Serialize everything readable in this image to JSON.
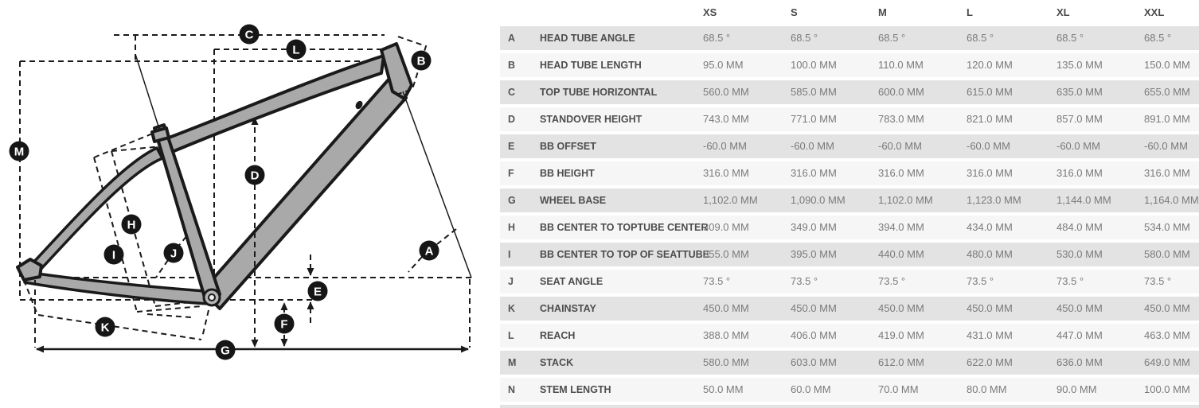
{
  "diagram": {
    "labels": [
      "A",
      "B",
      "C",
      "D",
      "E",
      "F",
      "G",
      "H",
      "I",
      "J",
      "K",
      "L",
      "M"
    ],
    "frame_color": "#a9a9a9",
    "line_color": "#1a1a1a",
    "label_bg_color": "#161616",
    "label_text_color": "#ffffff"
  },
  "table": {
    "columns": [
      "XS",
      "S",
      "M",
      "L",
      "XL",
      "XXL"
    ],
    "rows": [
      {
        "key": "A",
        "name": "HEAD TUBE ANGLE",
        "values": [
          "68.5 °",
          "68.5 °",
          "68.5 °",
          "68.5 °",
          "68.5 °",
          "68.5 °"
        ]
      },
      {
        "key": "B",
        "name": "HEAD TUBE LENGTH",
        "values": [
          "95.0 MM",
          "100.0 MM",
          "110.0 MM",
          "120.0 MM",
          "135.0 MM",
          "150.0 MM"
        ]
      },
      {
        "key": "C",
        "name": "TOP TUBE HORIZONTAL",
        "values": [
          "560.0 MM",
          "585.0 MM",
          "600.0 MM",
          "615.0 MM",
          "635.0 MM",
          "655.0 MM"
        ]
      },
      {
        "key": "D",
        "name": "STANDOVER HEIGHT",
        "values": [
          "743.0 MM",
          "771.0 MM",
          "783.0 MM",
          "821.0 MM",
          "857.0 MM",
          "891.0 MM"
        ]
      },
      {
        "key": "E",
        "name": "BB OFFSET",
        "values": [
          "-60.0 MM",
          "-60.0 MM",
          "-60.0 MM",
          "-60.0 MM",
          "-60.0 MM",
          "-60.0 MM"
        ]
      },
      {
        "key": "F",
        "name": "BB HEIGHT",
        "values": [
          "316.0 MM",
          "316.0 MM",
          "316.0 MM",
          "316.0 MM",
          "316.0 MM",
          "316.0 MM"
        ]
      },
      {
        "key": "G",
        "name": "WHEEL BASE",
        "values": [
          "1,102.0 MM",
          "1,090.0 MM",
          "1,102.0 MM",
          "1,123.0 MM",
          "1,144.0 MM",
          "1,164.0 MM"
        ]
      },
      {
        "key": "H",
        "name": "BB CENTER TO TOPTUBE CENTER",
        "values": [
          "309.0 MM",
          "349.0 MM",
          "394.0 MM",
          "434.0 MM",
          "484.0 MM",
          "534.0 MM"
        ]
      },
      {
        "key": "I",
        "name": "BB CENTER TO TOP OF SEATTUBE",
        "values": [
          "355.0 MM",
          "395.0 MM",
          "440.0 MM",
          "480.0 MM",
          "530.0 MM",
          "580.0 MM"
        ]
      },
      {
        "key": "J",
        "name": "SEAT ANGLE",
        "values": [
          "73.5 °",
          "73.5 °",
          "73.5 °",
          "73.5 °",
          "73.5 °",
          "73.5 °"
        ]
      },
      {
        "key": "K",
        "name": "CHAINSTAY",
        "values": [
          "450.0 MM",
          "450.0 MM",
          "450.0 MM",
          "450.0 MM",
          "450.0 MM",
          "450.0 MM"
        ]
      },
      {
        "key": "L",
        "name": "REACH",
        "values": [
          "388.0 MM",
          "406.0 MM",
          "419.0 MM",
          "431.0 MM",
          "447.0 MM",
          "463.0 MM"
        ]
      },
      {
        "key": "M",
        "name": "STACK",
        "values": [
          "580.0 MM",
          "603.0 MM",
          "612.0 MM",
          "622.0 MM",
          "636.0 MM",
          "649.0 MM"
        ]
      },
      {
        "key": "N",
        "name": "STEM LENGTH",
        "values": [
          "50.0 MM",
          "60.0 MM",
          "70.0 MM",
          "80.0 MM",
          "90.0 MM",
          "100.0 MM"
        ]
      }
    ]
  }
}
